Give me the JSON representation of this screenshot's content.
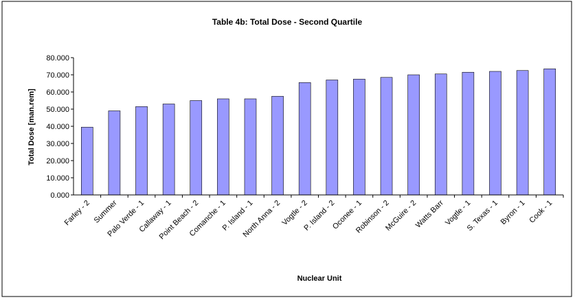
{
  "chart_data": {
    "type": "bar",
    "title": "Table 4b: Total Dose - Second Quartile",
    "x_label": "Nuclear Unit",
    "y_label": "Total Dose [man.rem]",
    "categories": [
      "Farley - 2",
      "Summer",
      "Palo Verde - 1",
      "Callaway - 1",
      "Point Beach - 2",
      "Comanche - 1",
      "P. Island - 1",
      "North Anna - 2",
      "Vogtle - 2",
      "P. Island - 2",
      "Oconee - 1",
      "Robinson - 2",
      "McGuire - 2",
      "Watts Barr",
      "Vogtle - 1",
      "S. Texas - 1",
      "Byron - 1",
      "Cook - 1"
    ],
    "values": [
      39.5,
      49,
      51.5,
      53,
      55,
      56,
      56,
      57.5,
      65.5,
      67,
      67.5,
      68.5,
      70,
      70.5,
      71.5,
      72,
      72.5,
      73.5
    ],
    "color": "#9999ff",
    "ylim": [
      0,
      80
    ],
    "yticks": [
      {
        "value": 0,
        "label": "0.000"
      },
      {
        "value": 10,
        "label": "10.000"
      },
      {
        "value": 20,
        "label": "20.000"
      },
      {
        "value": 30,
        "label": "30.000"
      },
      {
        "value": 40,
        "label": "40.000"
      },
      {
        "value": 50,
        "label": "50.000"
      },
      {
        "value": 60,
        "label": "60.000"
      },
      {
        "value": 70,
        "label": "70.000"
      },
      {
        "value": 80,
        "label": "80.000"
      }
    ],
    "grid": false
  }
}
